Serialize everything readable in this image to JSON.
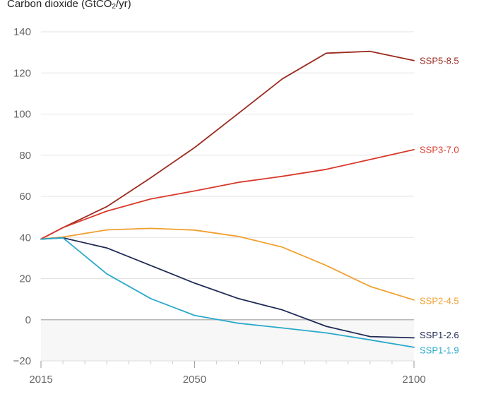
{
  "chart_data": {
    "type": "line",
    "title_main": "Carbon dioxide (GtCO",
    "title_sub": "2",
    "title_end": "/yr)",
    "title": "Carbon dioxide (GtCO₂/yr)",
    "xlabel": "",
    "ylabel": "",
    "xlim": [
      2015,
      2100
    ],
    "ylim": [
      -20,
      140
    ],
    "x_ticks": [
      2015,
      2050,
      2100
    ],
    "x_minor_step": 5,
    "y_ticks": [
      -20,
      0,
      20,
      40,
      60,
      80,
      100,
      120,
      140
    ],
    "y_tick_labels": [
      "−20",
      "0",
      "20",
      "40",
      "60",
      "80",
      "100",
      "120",
      "140"
    ],
    "grid": true,
    "negative_region_shaded": true,
    "legend": "inline-right",
    "x": [
      2015,
      2020,
      2030,
      2040,
      2050,
      2060,
      2070,
      2080,
      2090,
      2100
    ],
    "series": [
      {
        "name": "SSP5-8.5",
        "color": "#9b2b21",
        "values": [
          39.2,
          44.8,
          55.0,
          69.0,
          83.7,
          100.3,
          117.1,
          129.6,
          130.5,
          126.0
        ]
      },
      {
        "name": "SSP3-7.0",
        "color": "#d8392b",
        "values": [
          39.2,
          44.8,
          52.8,
          58.7,
          62.6,
          66.8,
          69.7,
          73.1,
          77.9,
          82.7
        ]
      },
      {
        "name": "SSP2-4.5",
        "color": "#f0a02f",
        "values": [
          39.2,
          40.2,
          43.7,
          44.4,
          43.6,
          40.5,
          35.3,
          26.4,
          16.2,
          9.6
        ]
      },
      {
        "name": "SSP1-2.6",
        "color": "#1f2b56",
        "values": [
          39.2,
          39.8,
          34.9,
          26.4,
          17.8,
          10.3,
          4.8,
          -3.2,
          -8.2,
          -8.8
        ]
      },
      {
        "name": "SSP1-1.9",
        "color": "#2aa9cb",
        "values": [
          39.2,
          39.8,
          22.3,
          10.3,
          2.1,
          -1.7,
          -4.0,
          -6.4,
          -9.8,
          -13.4
        ]
      }
    ]
  }
}
